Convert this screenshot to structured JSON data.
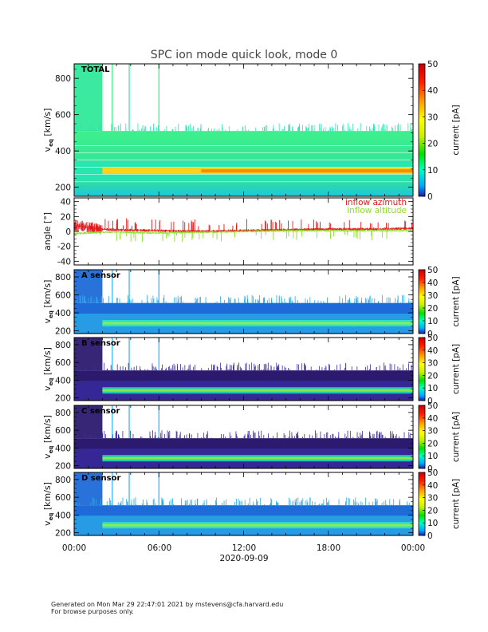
{
  "title": "SPC ion mode quick look, mode 0",
  "footer": {
    "line1": "Generated on Mon Mar 29 22:47:01 2021 by mstevens@cfa.harvard.edu",
    "line2": "For browse purposes only."
  },
  "time_axis": {
    "ticks": [
      "00:00",
      "06:00",
      "12:00",
      "18:00",
      "00:00"
    ],
    "date_label": "2020-09-09"
  },
  "colors": {
    "azimuth": "#e41a1a",
    "altitude": "#8ee02a",
    "total_bg": "#1fd38a",
    "dark_bg": "#2c1a6e",
    "beam": "#ffd21a"
  },
  "chart_data": [
    {
      "type": "heatmap",
      "panel": "TOTAL",
      "ylabel": "v",
      "ylabel_sub": "eq",
      "ylabel_unit": "[km/s]",
      "yticks": [
        200,
        400,
        600,
        800
      ],
      "ylim": [
        150,
        880
      ],
      "x_range_hours": [
        0,
        24
      ],
      "colorbar": {
        "label": "current [pA]",
        "ticks": [
          0,
          10,
          20,
          30,
          40,
          50
        ],
        "range": [
          0,
          50
        ]
      },
      "features": {
        "core_speed_kms": 290,
        "upper_cutoff_kms": 510,
        "spikes_hours": [
          2.7,
          3.9,
          6.0
        ]
      }
    },
    {
      "type": "line",
      "panel": "angle",
      "ylabel": "angle [°]",
      "yticks": [
        -40,
        -20,
        0,
        20,
        40
      ],
      "ylim": [
        -45,
        45
      ],
      "legend": [
        "inflow azimuth",
        "inflow altitude"
      ],
      "legend_position": "top-right",
      "series": [
        {
          "name": "inflow azimuth",
          "baseline_deg": 3,
          "x_hours": [
            0,
            2,
            3,
            6,
            9,
            12,
            15,
            18,
            21,
            24
          ],
          "values": [
            8,
            3,
            2,
            1,
            0,
            1,
            2,
            3,
            3,
            4
          ]
        },
        {
          "name": "inflow altitude",
          "baseline_deg": 0,
          "x_hours": [
            0,
            2,
            3,
            6,
            9,
            12,
            15,
            18,
            21,
            24
          ],
          "values": [
            -3,
            -1,
            -1,
            -2,
            -1,
            0,
            1,
            1,
            1,
            1
          ]
        }
      ]
    },
    {
      "type": "heatmap",
      "panel": "A sensor",
      "ylabel": "v",
      "ylabel_sub": "eq",
      "ylabel_unit": "[km/s]",
      "yticks": [
        200,
        400,
        600,
        800
      ],
      "ylim": [
        170,
        880
      ],
      "colorbar": {
        "label": "current [pA]",
        "ticks": [
          0,
          10,
          20,
          30,
          40,
          50
        ],
        "range": [
          0,
          50
        ]
      },
      "features": {
        "core_speed_kms": 285,
        "upper_cutoff_kms": 510
      }
    },
    {
      "type": "heatmap",
      "panel": "B sensor",
      "ylabel": "v",
      "ylabel_sub": "eq",
      "ylabel_unit": "[km/s]",
      "yticks": [
        200,
        400,
        600,
        800
      ],
      "ylim": [
        170,
        880
      ],
      "colorbar": {
        "label": "current [pA]",
        "ticks": [
          0,
          10,
          20,
          30,
          40,
          50
        ],
        "range": [
          0,
          50
        ]
      },
      "features": {
        "core_speed_kms": 285,
        "upper_cutoff_kms": 510
      }
    },
    {
      "type": "heatmap",
      "panel": "C sensor",
      "ylabel": "v",
      "ylabel_sub": "eq",
      "ylabel_unit": "[km/s]",
      "yticks": [
        200,
        400,
        600,
        800
      ],
      "ylim": [
        170,
        880
      ],
      "colorbar": {
        "label": "current [pA]",
        "ticks": [
          0,
          10,
          20,
          30,
          40,
          50
        ],
        "range": [
          0,
          50
        ]
      },
      "features": {
        "core_speed_kms": 285,
        "upper_cutoff_kms": 510
      }
    },
    {
      "type": "heatmap",
      "panel": "D sensor",
      "ylabel": "v",
      "ylabel_sub": "eq",
      "ylabel_unit": "[km/s]",
      "yticks": [
        200,
        400,
        600,
        800
      ],
      "ylim": [
        170,
        880
      ],
      "colorbar": {
        "label": "current [pA]",
        "ticks": [
          0,
          10,
          20,
          30,
          40,
          50
        ],
        "range": [
          0,
          50
        ]
      },
      "features": {
        "core_speed_kms": 285,
        "upper_cutoff_kms": 510
      }
    }
  ]
}
